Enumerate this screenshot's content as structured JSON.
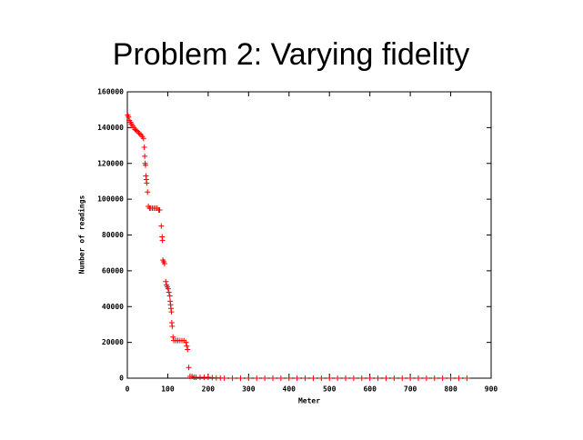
{
  "chart_data": {
    "type": "scatter",
    "title": "Problem 2: Varying fidelity",
    "xlabel": "Meter",
    "ylabel": "Number of readings",
    "color": "#ff0000",
    "xlim": [
      0,
      900
    ],
    "ylim": [
      0,
      160000
    ],
    "xticks": [
      0,
      100,
      200,
      300,
      400,
      500,
      600,
      700,
      800,
      900
    ],
    "yticks": [
      0,
      20000,
      40000,
      60000,
      80000,
      100000,
      120000,
      140000,
      160000
    ],
    "x": [
      1,
      3,
      5,
      8,
      10,
      13,
      16,
      19,
      22,
      25,
      28,
      31,
      34,
      37,
      40,
      42,
      43,
      44,
      45,
      46,
      47,
      48,
      50,
      52,
      55,
      58,
      62,
      66,
      70,
      74,
      78,
      80,
      84,
      86,
      87,
      88,
      90,
      92,
      95,
      97,
      99,
      101,
      103,
      105,
      106,
      107,
      108,
      109,
      110,
      111,
      113,
      115,
      120,
      125,
      130,
      135,
      140,
      145,
      147,
      149,
      152,
      155,
      160,
      165,
      170,
      180,
      190,
      200,
      210,
      220,
      230,
      240,
      260,
      280,
      300,
      320,
      340,
      360,
      380,
      400,
      420,
      440,
      460,
      480,
      500,
      520,
      540,
      560,
      580,
      600,
      620,
      640,
      660,
      680,
      700,
      720,
      740,
      760,
      780,
      800,
      820,
      840
    ],
    "y": [
      147000,
      146000,
      144000,
      143000,
      142000,
      141000,
      140000,
      139000,
      138500,
      138000,
      137000,
      136500,
      136000,
      135000,
      134000,
      129000,
      124000,
      120000,
      119000,
      113000,
      111000,
      109000,
      104000,
      96000,
      95000,
      95000,
      95000,
      95000,
      95000,
      95000,
      94000,
      94000,
      85000,
      79000,
      77000,
      66000,
      65000,
      64000,
      54000,
      52000,
      51000,
      50000,
      48000,
      46000,
      43000,
      41000,
      39000,
      37000,
      31000,
      29000,
      23000,
      21000,
      21000,
      21000,
      21000,
      21000,
      21000,
      20000,
      18000,
      16000,
      6000,
      1000,
      1000,
      500,
      500,
      500,
      500,
      500,
      300,
      200,
      100,
      0,
      0,
      0,
      0,
      0,
      0,
      0,
      0,
      0,
      0,
      0,
      0,
      0,
      0,
      0,
      0,
      0,
      0,
      0,
      0,
      0,
      0,
      0,
      0,
      0,
      0,
      0,
      0,
      0,
      0,
      0
    ]
  }
}
